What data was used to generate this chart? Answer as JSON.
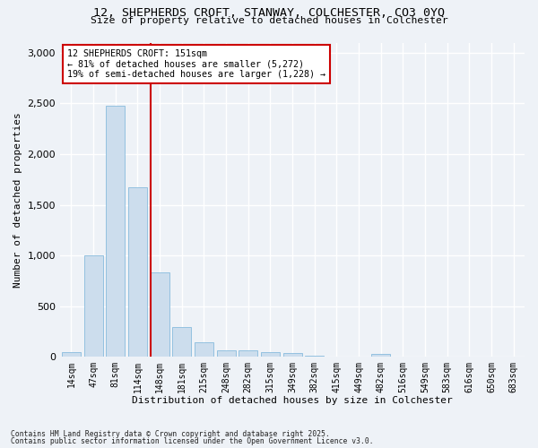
{
  "title_line1": "12, SHEPHERDS CROFT, STANWAY, COLCHESTER, CO3 0YQ",
  "title_line2": "Size of property relative to detached houses in Colchester",
  "xlabel": "Distribution of detached houses by size in Colchester",
  "ylabel": "Number of detached properties",
  "bar_labels": [
    "14sqm",
    "47sqm",
    "81sqm",
    "114sqm",
    "148sqm",
    "181sqm",
    "215sqm",
    "248sqm",
    "282sqm",
    "315sqm",
    "349sqm",
    "382sqm",
    "415sqm",
    "449sqm",
    "482sqm",
    "516sqm",
    "549sqm",
    "583sqm",
    "616sqm",
    "650sqm",
    "683sqm"
  ],
  "bar_values": [
    50,
    1005,
    2480,
    1670,
    830,
    295,
    140,
    65,
    60,
    45,
    35,
    10,
    0,
    0,
    25,
    0,
    0,
    0,
    0,
    0,
    0
  ],
  "bar_color": "#ccdded",
  "bar_edgecolor": "#88bbdd",
  "ylim": [
    0,
    3100
  ],
  "yticks": [
    0,
    500,
    1000,
    1500,
    2000,
    2500,
    3000
  ],
  "property_line_index": 4,
  "property_line_color": "#cc0000",
  "annotation_title": "12 SHEPHERDS CROFT: 151sqm",
  "annotation_line1": "← 81% of detached houses are smaller (5,272)",
  "annotation_line2": "19% of semi-detached houses are larger (1,228) →",
  "annotation_box_color": "#cc0000",
  "footnote1": "Contains HM Land Registry data © Crown copyright and database right 2025.",
  "footnote2": "Contains public sector information licensed under the Open Government Licence v3.0.",
  "background_color": "#eef2f7",
  "plot_background": "#eef2f7",
  "grid_color": "#ffffff"
}
